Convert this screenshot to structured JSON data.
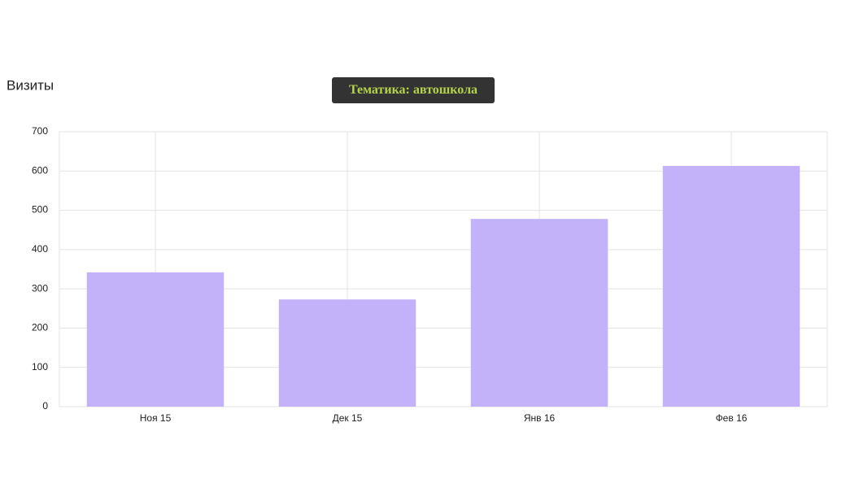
{
  "chart_data": {
    "type": "bar",
    "title": "Визиты",
    "annotation": "Тематика: автошкола",
    "categories": [
      "Ноя 15",
      "Дек 15",
      "Янв 16",
      "Фев 16"
    ],
    "values": [
      342,
      273,
      478,
      613
    ],
    "color": "#c3b1f9",
    "ylim": [
      0,
      700
    ],
    "yticks": [
      0,
      100,
      200,
      300,
      400,
      500,
      600,
      700
    ],
    "grid": true
  }
}
